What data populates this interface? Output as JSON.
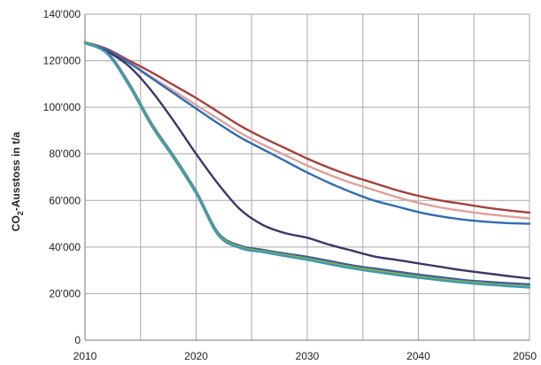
{
  "chart_data": {
    "type": "line",
    "title": "",
    "xlabel": "",
    "ylabel": {
      "prefix": "CO",
      "subscript": "2",
      "suffix": "-Ausstoss in t/a"
    },
    "xlim": [
      2010,
      2050
    ],
    "ylim": [
      0,
      140000
    ],
    "x_ticks": [
      2010,
      2020,
      2030,
      2040,
      2050
    ],
    "x_tick_labels": [
      "2010",
      "2020",
      "2030",
      "2040",
      "2050"
    ],
    "x_grid": [
      2010,
      2015,
      2020,
      2025,
      2030,
      2035,
      2040,
      2045,
      2050
    ],
    "y_ticks": [
      0,
      20000,
      40000,
      60000,
      80000,
      100000,
      120000,
      140000
    ],
    "y_tick_labels": [
      "0",
      "20'000",
      "40'000",
      "60'000",
      "80'000",
      "100'000",
      "120'000",
      "140'000"
    ],
    "grid": true,
    "legend": "none",
    "x": [
      2010,
      2012,
      2014,
      2016,
      2018,
      2020,
      2022,
      2024,
      2026,
      2028,
      2030,
      2032,
      2034,
      2036,
      2038,
      2040,
      2042,
      2044,
      2046,
      2048,
      2050
    ],
    "series": [
      {
        "color": "#a5403c",
        "values": [
          128000,
          125000,
          120000,
          115000,
          109500,
          104000,
          98000,
          92000,
          87000,
          82500,
          78000,
          74000,
          70500,
          67500,
          64500,
          62000,
          60000,
          58500,
          57000,
          55800,
          54800
        ]
      },
      {
        "color": "#e0a09c",
        "values": [
          128000,
          124500,
          119000,
          113000,
          107000,
          101000,
          95000,
          89000,
          84000,
          79500,
          75000,
          71000,
          67500,
          64500,
          61500,
          59000,
          57000,
          55500,
          54200,
          53200,
          52300
        ]
      },
      {
        "color": "#2e6db4",
        "values": [
          128000,
          124500,
          119000,
          112500,
          106000,
          99500,
          93000,
          87000,
          82000,
          77000,
          72000,
          67500,
          63500,
          60000,
          57500,
          55000,
          53200,
          51800,
          50900,
          50300,
          50000
        ]
      },
      {
        "color": "#3d3566",
        "values": [
          128000,
          124000,
          117500,
          107000,
          94000,
          80000,
          67000,
          56000,
          49500,
          46000,
          44000,
          41000,
          38500,
          36000,
          34500,
          33000,
          31500,
          30000,
          28800,
          27600,
          26500
        ]
      },
      {
        "color": "#3d5a9e",
        "values": [
          128000,
          123500,
          110000,
          93000,
          79000,
          64000,
          46000,
          40500,
          38800,
          37200,
          35800,
          34000,
          32200,
          30800,
          29500,
          28200,
          27000,
          25900,
          25100,
          24500,
          24000
        ]
      },
      {
        "color": "#8db43a",
        "values": [
          128000,
          123000,
          109500,
          92500,
          78500,
          63500,
          45500,
          40000,
          38200,
          36600,
          35000,
          33200,
          31400,
          30000,
          28600,
          27300,
          26200,
          25200,
          24400,
          23600,
          23000
        ]
      },
      {
        "color": "#3a9ab8",
        "values": [
          127500,
          123000,
          109000,
          92000,
          78000,
          63000,
          45000,
          39500,
          37800,
          36100,
          34500,
          32600,
          30800,
          29400,
          28000,
          26800,
          25700,
          24700,
          23900,
          23200,
          22600
        ]
      }
    ]
  }
}
